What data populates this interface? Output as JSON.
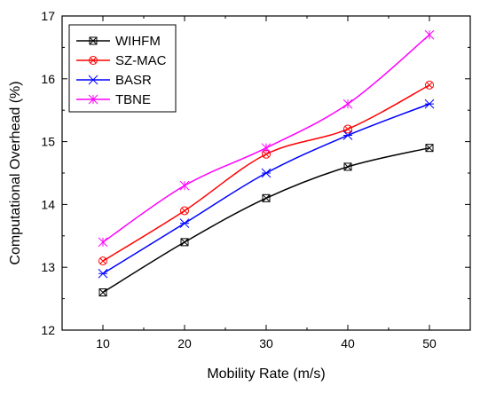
{
  "chart_data": {
    "type": "line",
    "title": "",
    "xlabel": "Mobility Rate (m/s)",
    "ylabel": "Computational Overhead (%)",
    "x": [
      10,
      20,
      30,
      40,
      50
    ],
    "xlim": [
      5,
      55
    ],
    "ylim": [
      12,
      17
    ],
    "xticks": [
      "10",
      "20",
      "30",
      "40",
      "50"
    ],
    "yticks": [
      "12",
      "13",
      "14",
      "15",
      "16",
      "17"
    ],
    "grid": false,
    "legend_position": "top-left",
    "series": [
      {
        "name": "WIHFM",
        "color": "#000000",
        "marker": "square-x",
        "values": [
          12.6,
          13.4,
          14.1,
          14.6,
          14.9
        ]
      },
      {
        "name": "SZ-MAC",
        "color": "#ff0000",
        "marker": "circle-x",
        "values": [
          13.1,
          13.9,
          14.8,
          15.2,
          15.9
        ]
      },
      {
        "name": "BASR",
        "color": "#0000ff",
        "marker": "star",
        "values": [
          12.9,
          13.7,
          14.5,
          15.1,
          15.6
        ]
      },
      {
        "name": "TBNE",
        "color": "#ff00ff",
        "marker": "asterisk",
        "values": [
          13.4,
          14.3,
          14.9,
          15.6,
          16.7
        ]
      }
    ]
  }
}
